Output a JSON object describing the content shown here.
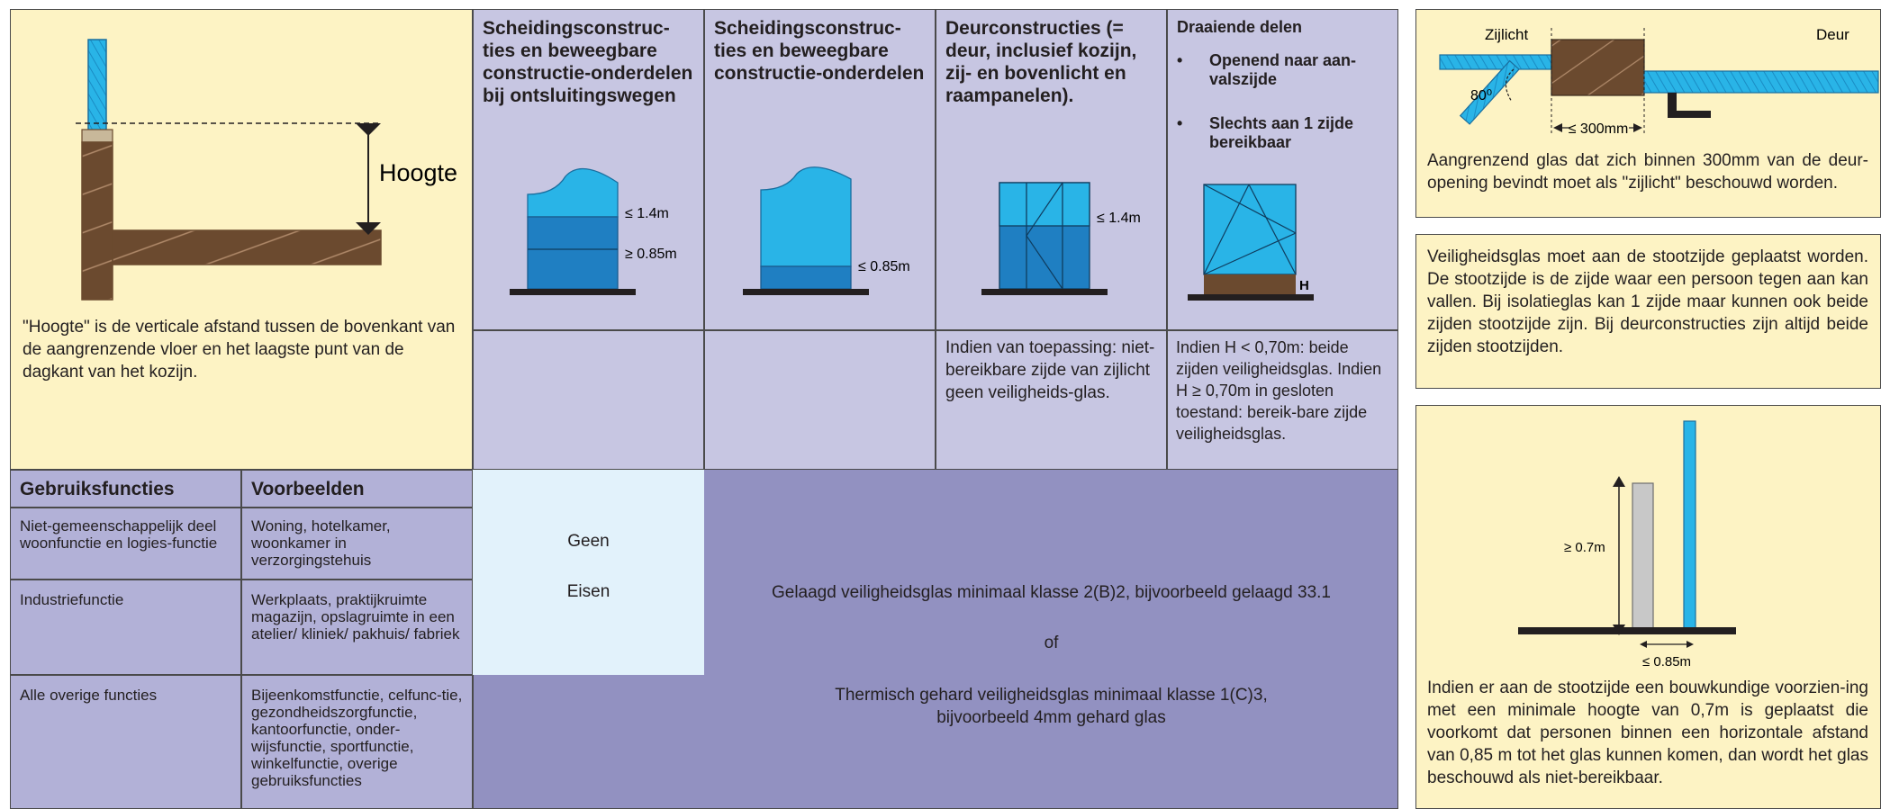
{
  "colors": {
    "yellow": "#fdf3c4",
    "lavender": "#c7c6e2",
    "purple": "#9291c1",
    "light_blue": "#e2f2fb",
    "glass_cyan": "#29b4e7",
    "glass_blue": "#1f7fc2",
    "wood": "#6b4a2f"
  },
  "left_panel": {
    "hoogte_label": "Hoogte",
    "description": "\"Hoogte\" is de verticale afstand tussen de bovenkant van de aangrenzende vloer en het laagste punt van de dagkant van het kozijn."
  },
  "columns": [
    {
      "header": "Scheidingsconstruc-ties en beweegbare constructie-onderdelen bij ontsluitingswegen",
      "labels": [
        "≤ 1.4m",
        "≥ 0.85m"
      ],
      "note": ""
    },
    {
      "header": "Scheidingsconstruc-ties en beweegbare constructie-onderdelen",
      "labels": [
        "≤ 0.85m"
      ],
      "note": ""
    },
    {
      "header": "Deurconstructies (= deur, inclusief kozijn, zij- en bovenlicht en raampanelen).",
      "labels": [
        "≤ 1.4m"
      ],
      "note": "Indien van toepassing: niet-bereikbare zijde van zijlicht geen veiligheids-glas."
    },
    {
      "header": "Draaiende delen",
      "bullets": [
        "Openend naar aan-valszijde",
        "Slechts aan 1 zijde bereikbaar"
      ],
      "labels": [
        "H"
      ],
      "note": "Indien H < 0,70m: beide zijden veiligheidsglas. Indien H ≥ 0,70m in gesloten toestand: bereik-bare zijde veiligheidsglas."
    }
  ],
  "table": {
    "headers": [
      "Gebruiksfuncties",
      "Voorbeelden"
    ],
    "rows": [
      {
        "function": "Niet-gemeenschappelijk deel woonfunctie en logies-functie",
        "examples": "Woning, hotelkamer, woonkamer in verzorgingstehuis"
      },
      {
        "function": "Industriefunctie",
        "examples": "Werkplaats, praktijkruimte magazijn, opslagruimte in een atelier/ kliniek/ pakhuis/ fabriek"
      },
      {
        "function": "Alle overige functies",
        "examples": "Bijeenkomstfunctie, celfunc-tie, gezondheidszorgfunctie, kantoorfunctie, onder-wijsfunctie, sportfunctie, winkelfunctie, overige gebruiksfuncties"
      }
    ],
    "geen": "Geen",
    "eisen": "Eisen",
    "requirement_1": "Gelaagd veiligheidsglas minimaal klasse 2(B)2, bijvoorbeeld gelaagd 33.1",
    "requirement_or": "of",
    "requirement_2": "Thermisch gehard veiligheidsglas minimaal klasse 1(C)3, bijvoorbeeld 4mm gehard glas"
  },
  "right_panels": {
    "p1": {
      "zijlicht": "Zijlicht",
      "deur": "Deur",
      "angle": "80⁰",
      "distance": "≤ 300mm",
      "text": "Aangrenzend glas dat zich binnen 300mm van de deur-opening bevindt moet als \"zijlicht\" beschouwd worden."
    },
    "p2": {
      "text": "Veiligheidsglas moet aan de stootzijde geplaatst worden. De stootzijde is de zijde waar een persoon tegen aan kan vallen. Bij isolatieglas kan 1 zijde maar kunnen ook beide zijden stootzijde zijn. Bij deurconstructies zijn altijd beide zijden stootzijden."
    },
    "p3": {
      "height_label": "≥ 0.7m",
      "distance_label": "≤ 0.85m",
      "text": "Indien er aan de stootzijde een bouwkundige voorzien-ing met een minimale hoogte van 0,7m is geplaatst die voorkomt dat personen binnen een horizontale afstand van 0,85 m tot het glas kunnen komen, dan wordt het glas beschouwd als niet-bereikbaar."
    }
  }
}
